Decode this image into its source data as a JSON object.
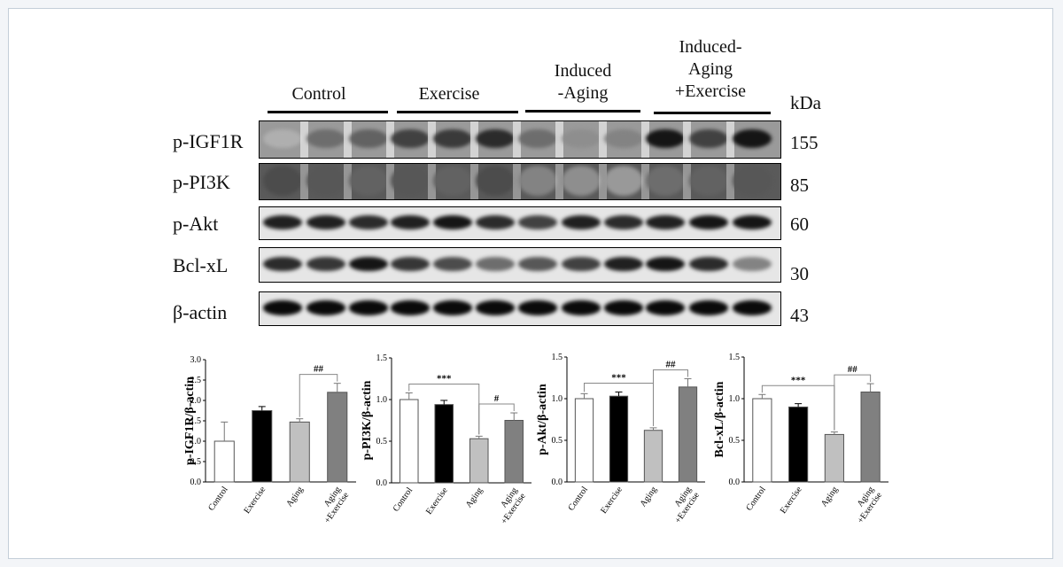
{
  "blot_figure": {
    "groups": [
      {
        "label": "Control"
      },
      {
        "label": "Exercise"
      },
      {
        "label": "Induced\n-Aging"
      },
      {
        "label": "Induced-\nAging\n+Exercise"
      }
    ],
    "kda_header": "kDa",
    "rows": [
      {
        "label": "p-IGF1R",
        "kda": "155",
        "intensities": [
          0.25,
          0.55,
          0.6,
          0.75,
          0.78,
          0.85,
          0.55,
          0.4,
          0.45,
          0.95,
          0.75,
          0.95
        ]
      },
      {
        "label": "p-PI3K",
        "kda": "85",
        "intensities": [
          0.7,
          0.65,
          0.6,
          0.65,
          0.6,
          0.7,
          0.45,
          0.4,
          0.35,
          0.55,
          0.6,
          0.65
        ]
      },
      {
        "label": "p-Akt",
        "kda": "60",
        "intensities": [
          0.9,
          0.9,
          0.85,
          0.9,
          0.95,
          0.85,
          0.75,
          0.9,
          0.85,
          0.9,
          0.95,
          0.95
        ]
      },
      {
        "label": "Bcl-xL",
        "kda": "30",
        "intensities": [
          0.85,
          0.8,
          0.95,
          0.8,
          0.7,
          0.55,
          0.65,
          0.75,
          0.9,
          0.95,
          0.85,
          0.45
        ]
      },
      {
        "label": "β-actin",
        "kda": "43",
        "intensities": [
          1,
          1,
          1,
          1,
          1,
          1,
          1,
          1,
          1,
          1,
          1,
          1
        ]
      }
    ]
  },
  "chart_data": [
    {
      "type": "bar",
      "categories": [
        "Control",
        "Exercise",
        "Aging",
        "Aging\n+Exercise"
      ],
      "values": [
        1.0,
        1.75,
        1.47,
        2.2
      ],
      "errors": [
        0.47,
        0.1,
        0.08,
        0.22
      ],
      "ylabel": "p-IGF1R/β-actin",
      "ylim": [
        0,
        3.0
      ],
      "yticks": [
        "0.0",
        "0.5",
        "1.0",
        "1.5",
        "2.0",
        "2.5",
        "3.0"
      ],
      "bar_colors": [
        "#ffffff",
        "#000000",
        "#c0c0c0",
        "#808080"
      ],
      "significance": [
        {
          "from": 2,
          "to": 3,
          "label": "##"
        }
      ]
    },
    {
      "type": "bar",
      "categories": [
        "Control",
        "Exercise",
        "Aging",
        "Aging\n+Exercise"
      ],
      "values": [
        1.0,
        0.94,
        0.53,
        0.75
      ],
      "errors": [
        0.08,
        0.05,
        0.03,
        0.09
      ],
      "ylabel": "p-PI3K/β-actin",
      "ylim": [
        0,
        1.5
      ],
      "yticks": [
        "0.0",
        "0.5",
        "1.0",
        "1.5"
      ],
      "bar_colors": [
        "#ffffff",
        "#000000",
        "#c0c0c0",
        "#808080"
      ],
      "significance": [
        {
          "from": 0,
          "to": 2,
          "label": "***"
        },
        {
          "from": 2,
          "to": 3,
          "label": "#"
        }
      ]
    },
    {
      "type": "bar",
      "categories": [
        "Control",
        "Exercise",
        "Aging",
        "Aging\n+Exercise"
      ],
      "values": [
        1.0,
        1.03,
        0.62,
        1.14
      ],
      "errors": [
        0.06,
        0.05,
        0.03,
        0.1
      ],
      "ylabel": "p-Akt/β-actin",
      "ylim": [
        0,
        1.5
      ],
      "yticks": [
        "0.0",
        "0.5",
        "1.0",
        "1.5"
      ],
      "bar_colors": [
        "#ffffff",
        "#000000",
        "#c0c0c0",
        "#808080"
      ],
      "significance": [
        {
          "from": 0,
          "to": 2,
          "label": "***"
        },
        {
          "from": 2,
          "to": 3,
          "label": "##"
        }
      ]
    },
    {
      "type": "bar",
      "categories": [
        "Control",
        "Exercise",
        "Aging",
        "Aging\n+Exercise"
      ],
      "values": [
        1.0,
        0.9,
        0.57,
        1.08
      ],
      "errors": [
        0.05,
        0.04,
        0.03,
        0.1
      ],
      "ylabel": "Bcl-xL/β-actin",
      "ylim": [
        0,
        1.5
      ],
      "yticks": [
        "0.0",
        "0.5",
        "1.0",
        "1.5"
      ],
      "bar_colors": [
        "#ffffff",
        "#000000",
        "#c0c0c0",
        "#808080"
      ],
      "significance": [
        {
          "from": 0,
          "to": 2,
          "label": "***"
        },
        {
          "from": 2,
          "to": 3,
          "label": "##"
        }
      ]
    }
  ]
}
